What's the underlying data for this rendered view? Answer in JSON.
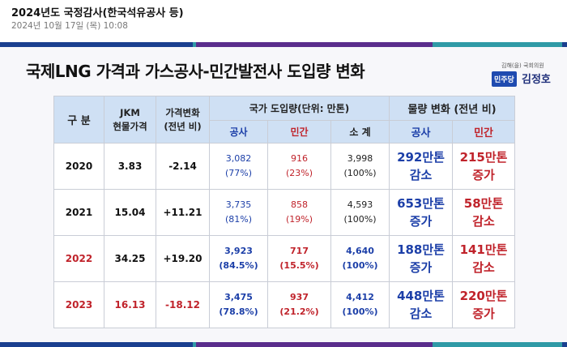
{
  "post": {
    "title": "2024년도 국정감사(한국석유공사 등)",
    "date": "2024년 10월 17일 (목) 10:08"
  },
  "slide": {
    "title": "국제LNG 가격과 가스공사-민간발전사 도입량 변화",
    "logo_sub": "김해(을) 국회의원",
    "logo_party": "민주당",
    "logo_name": "김정호"
  },
  "colors": {
    "stripe": [
      "#1a3f8f",
      "#2f9aa6",
      "#5a2d8c",
      "#2f9aa6",
      "#1a3f8f"
    ],
    "header_fill": "#cfe0f4",
    "blue": "#1c3fa8",
    "red": "#c0232b"
  },
  "table": {
    "headers": {
      "division": "구 분",
      "jkm_line1": "JKM",
      "jkm_line2": "현물가격",
      "change_line1": "가격변화",
      "change_line2": "(전년 비)",
      "imports": "국가 도입량(단위: 만톤)",
      "volume_change": "물량 변화 (전년 비)",
      "kogas": "공사",
      "private": "민간",
      "subtotal": "소 계",
      "kogas2": "공사",
      "private2": "민간"
    },
    "rows": [
      {
        "year": "2020",
        "jkm": "3.83",
        "change": "-2.14",
        "kogas_val": "3,082",
        "kogas_pct": "(77%)",
        "private_val": "916",
        "private_pct": "(23%)",
        "total_val": "3,998",
        "total_pct": "(100%)",
        "kogas_chg1": "292만톤",
        "kogas_chg2": "감소",
        "private_chg1": "215만톤",
        "private_chg2": "증가"
      },
      {
        "year": "2021",
        "jkm": "15.04",
        "change": "+11.21",
        "kogas_val": "3,735",
        "kogas_pct": "(81%)",
        "private_val": "858",
        "private_pct": "(19%)",
        "total_val": "4,593",
        "total_pct": "(100%)",
        "kogas_chg1": "653만톤",
        "kogas_chg2": "증가",
        "private_chg1": "58만톤",
        "private_chg2": "감소"
      },
      {
        "year": "2022",
        "jkm": "34.25",
        "change": "+19.20",
        "kogas_val": "3,923",
        "kogas_pct": "(84.5%)",
        "private_val": "717",
        "private_pct": "(15.5%)",
        "total_val": "4,640",
        "total_pct": "(100%)",
        "kogas_chg1": "188만톤",
        "kogas_chg2": "증가",
        "private_chg1": "141만톤",
        "private_chg2": "감소"
      },
      {
        "year": "2023",
        "jkm": "16.13",
        "change": "-18.12",
        "kogas_val": "3,475",
        "kogas_pct": "(78.8%)",
        "private_val": "937",
        "private_pct": "(21.2%)",
        "total_val": "4,412",
        "total_pct": "(100%)",
        "kogas_chg1": "448만톤",
        "kogas_chg2": "감소",
        "private_chg1": "220만톤",
        "private_chg2": "증가"
      }
    ]
  }
}
